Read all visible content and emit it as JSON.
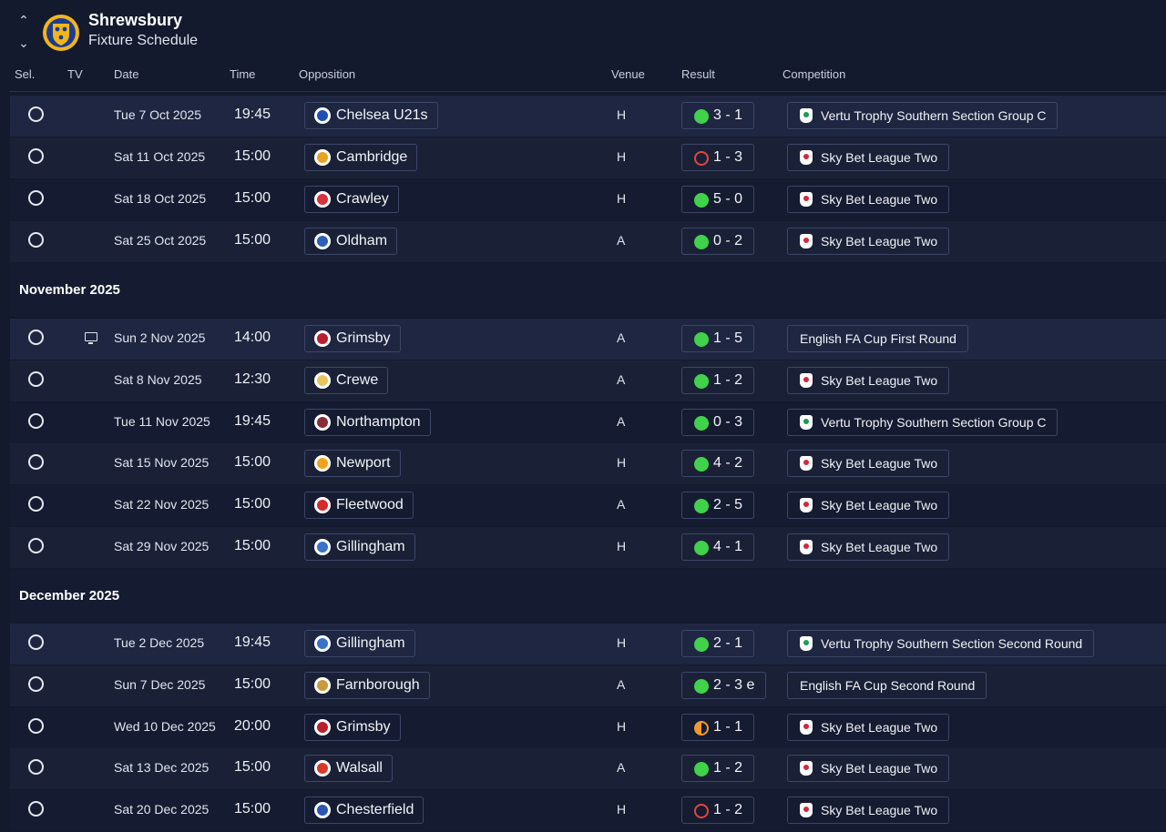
{
  "header": {
    "club": "Shrewsbury",
    "page_title": "Fixture Schedule",
    "crest_colors": [
      "#1b3d8f",
      "#f2b51c"
    ]
  },
  "columns": {
    "sel": "Sel.",
    "tv": "TV",
    "date": "Date",
    "time": "Time",
    "opposition": "Opposition",
    "venue": "Venue",
    "result": "Result",
    "competition": "Competition"
  },
  "months": [
    "November 2025",
    "December 2025"
  ],
  "result_colors": {
    "win": "#3fd24a",
    "loss": "#e2453d",
    "draw": "#f29a2e"
  },
  "fixtures": [
    {
      "date": "Tue 7 Oct 2025",
      "time": "19:45",
      "opp": "Chelsea U21s",
      "badge": "#1f4fb0",
      "venue": "H",
      "result": "3 - 1",
      "outcome": "W",
      "comp": "Vertu Trophy Southern Section Group C",
      "comp_logo": "vertu",
      "tv": false
    },
    {
      "date": "Sat 11 Oct 2025",
      "time": "15:00",
      "opp": "Cambridge",
      "badge": "#e9a323",
      "venue": "H",
      "result": "1 - 3",
      "outcome": "L",
      "comp": "Sky Bet League Two",
      "comp_logo": "sky",
      "tv": false
    },
    {
      "date": "Sat 18 Oct 2025",
      "time": "15:00",
      "opp": "Crawley",
      "badge": "#d6333d",
      "venue": "H",
      "result": "5 - 0",
      "outcome": "W",
      "comp": "Sky Bet League Two",
      "comp_logo": "sky",
      "tv": false
    },
    {
      "date": "Sat 25 Oct 2025",
      "time": "15:00",
      "opp": "Oldham",
      "badge": "#2d5fb8",
      "venue": "A",
      "result": "0 - 2",
      "outcome": "W",
      "comp": "Sky Bet League Two",
      "comp_logo": "sky",
      "tv": false
    },
    {
      "date": "Sun 2 Nov 2025",
      "time": "14:00",
      "opp": "Grimsby",
      "badge": "#b8202e",
      "venue": "A",
      "result": "1 - 5",
      "outcome": "W",
      "comp": "English FA Cup First Round",
      "comp_logo": "",
      "tv": true
    },
    {
      "date": "Sat 8 Nov 2025",
      "time": "12:30",
      "opp": "Crewe",
      "badge": "#e8c45a",
      "venue": "A",
      "result": "1 - 2",
      "outcome": "W",
      "comp": "Sky Bet League Two",
      "comp_logo": "sky",
      "tv": false
    },
    {
      "date": "Tue 11 Nov 2025",
      "time": "19:45",
      "opp": "Northampton",
      "badge": "#8a2c3a",
      "venue": "A",
      "result": "0 - 3",
      "outcome": "W",
      "comp": "Vertu Trophy Southern Section Group C",
      "comp_logo": "vertu",
      "tv": false
    },
    {
      "date": "Sat 15 Nov 2025",
      "time": "15:00",
      "opp": "Newport",
      "badge": "#f0a21e",
      "venue": "H",
      "result": "4 - 2",
      "outcome": "W",
      "comp": "Sky Bet League Two",
      "comp_logo": "sky",
      "tv": false
    },
    {
      "date": "Sat 22 Nov 2025",
      "time": "15:00",
      "opp": "Fleetwood",
      "badge": "#d42a2a",
      "venue": "A",
      "result": "2 - 5",
      "outcome": "W",
      "comp": "Sky Bet League Two",
      "comp_logo": "sky",
      "tv": false
    },
    {
      "date": "Sat 29 Nov 2025",
      "time": "15:00",
      "opp": "Gillingham",
      "badge": "#3a72c8",
      "venue": "H",
      "result": "4 - 1",
      "outcome": "W",
      "comp": "Sky Bet League Two",
      "comp_logo": "sky",
      "tv": false
    },
    {
      "date": "Tue 2 Dec 2025",
      "time": "19:45",
      "opp": "Gillingham",
      "badge": "#3a72c8",
      "venue": "H",
      "result": "2 - 1",
      "outcome": "W",
      "comp": "Vertu Trophy Southern Section Second Round",
      "comp_logo": "vertu",
      "tv": false
    },
    {
      "date": "Sun 7 Dec 2025",
      "time": "15:00",
      "opp": "Farnborough",
      "badge": "#c79a3c",
      "venue": "A",
      "result": "2 - 3 e",
      "outcome": "W",
      "comp": "English FA Cup Second Round",
      "comp_logo": "",
      "tv": false
    },
    {
      "date": "Wed 10 Dec 2025",
      "time": "20:00",
      "opp": "Grimsby",
      "badge": "#b8202e",
      "venue": "H",
      "result": "1 - 1",
      "outcome": "D",
      "comp": "Sky Bet League Two",
      "comp_logo": "sky",
      "tv": false
    },
    {
      "date": "Sat 13 Dec 2025",
      "time": "15:00",
      "opp": "Walsall",
      "badge": "#d83a2a",
      "venue": "A",
      "result": "1 - 2",
      "outcome": "W",
      "comp": "Sky Bet League Two",
      "comp_logo": "sky",
      "tv": false
    },
    {
      "date": "Sat 20 Dec 2025",
      "time": "15:00",
      "opp": "Chesterfield",
      "badge": "#2a56b0",
      "venue": "H",
      "result": "1 - 2",
      "outcome": "L",
      "comp": "Sky Bet League Two",
      "comp_logo": "sky",
      "tv": false
    }
  ]
}
